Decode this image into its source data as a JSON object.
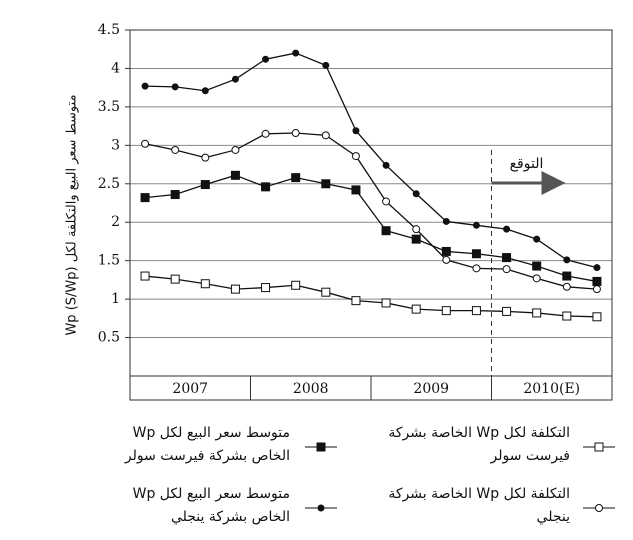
{
  "chart_data": {
    "type": "line",
    "y_label": "متوسط سعر البيع والتكلفة لكل Wp (S/Wp)",
    "annotation": "التوقع",
    "categories": [
      null,
      null,
      null,
      null,
      null,
      null,
      null,
      null,
      null,
      null,
      null,
      null,
      null,
      null,
      null,
      null
    ],
    "groups": [
      "2007",
      "2008",
      "2009",
      "2010(E)"
    ],
    "ylim": [
      0,
      4.5
    ],
    "yticks": [
      0.5,
      1,
      1.5,
      2,
      2.5,
      3,
      3.5,
      4,
      4.5
    ],
    "grid": true,
    "series": [
      {
        "name": "متوسط سعر البيع لكل Wp الخاص بشركة فيرست سولر",
        "color": "#111111",
        "marker": "square",
        "filled": true,
        "values": [
          2.32,
          2.36,
          2.49,
          2.61,
          2.46,
          2.58,
          2.5,
          2.42,
          1.89,
          1.78,
          1.62,
          1.59,
          1.54,
          1.43,
          1.3,
          1.23
        ]
      },
      {
        "name": "متوسط سعر البيع لكل Wp الخاص بشركة ينجلي",
        "color": "#111111",
        "marker": "circle",
        "filled": true,
        "values": [
          3.77,
          3.76,
          3.71,
          3.86,
          4.12,
          4.2,
          4.04,
          3.19,
          2.74,
          2.37,
          2.01,
          1.96,
          1.91,
          1.78,
          1.51,
          1.41
        ]
      },
      {
        "name": "التكلفة لكل Wp الخاصة بشركة فيرست سولر",
        "color": "#111111",
        "marker": "square",
        "filled": false,
        "values": [
          1.3,
          1.26,
          1.2,
          1.13,
          1.15,
          1.18,
          1.09,
          0.98,
          0.95,
          0.87,
          0.85,
          0.85,
          0.84,
          0.82,
          0.78,
          0.77
        ]
      },
      {
        "name": "التكلفة لكل Wp الخاصة بشركة ينجلي",
        "color": "#111111",
        "marker": "circle",
        "filled": false,
        "values": [
          3.02,
          2.94,
          2.84,
          2.94,
          3.15,
          3.16,
          3.13,
          2.86,
          2.27,
          1.91,
          1.51,
          1.4,
          1.39,
          1.27,
          1.16,
          1.13
        ]
      }
    ]
  }
}
